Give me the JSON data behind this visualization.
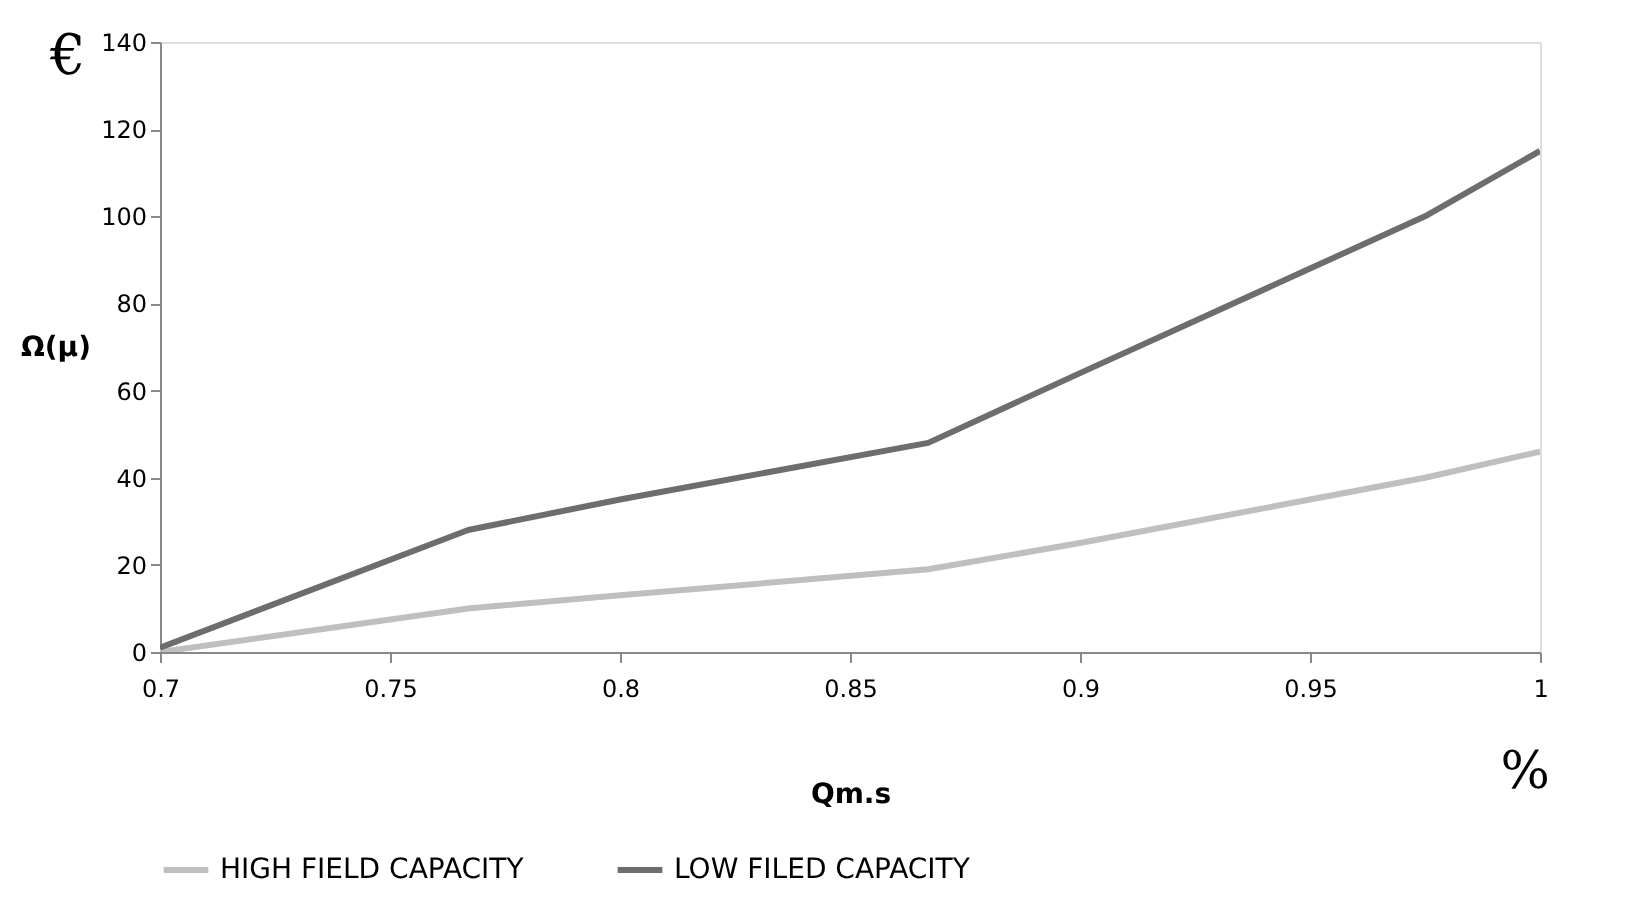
{
  "chart_data": {
    "type": "line",
    "xlabel": "Qm.s",
    "ylabel": "Ω(μ)",
    "annotations": [
      "€",
      "%"
    ],
    "series": [
      {
        "name": "HIGH FIELD CAPACITY",
        "color": "#bfbfbf",
        "x": [
          0.7,
          0.767,
          0.8,
          0.867,
          0.9,
          0.95,
          0.975,
          1
        ],
        "values": [
          0,
          10,
          13,
          19,
          25,
          35,
          40,
          46
        ]
      },
      {
        "name": "LOW FILED CAPACITY",
        "color": "#6d6d6d",
        "x": [
          0.7,
          0.767,
          0.8,
          0.867,
          0.9,
          0.95,
          0.975,
          1
        ],
        "values": [
          1,
          28,
          35,
          48,
          64,
          88,
          100,
          115
        ]
      }
    ],
    "xlim": [
      0.7,
      1
    ],
    "xticks": [
      0.7,
      0.75,
      0.8,
      0.85,
      0.9,
      0.95,
      1
    ],
    "ylim": [
      0,
      140
    ],
    "yticks": [
      0,
      20,
      40,
      60,
      80,
      100,
      120,
      140
    ],
    "grid": false,
    "legend": "bottom",
    "marker": "none",
    "line_style": "solid"
  }
}
